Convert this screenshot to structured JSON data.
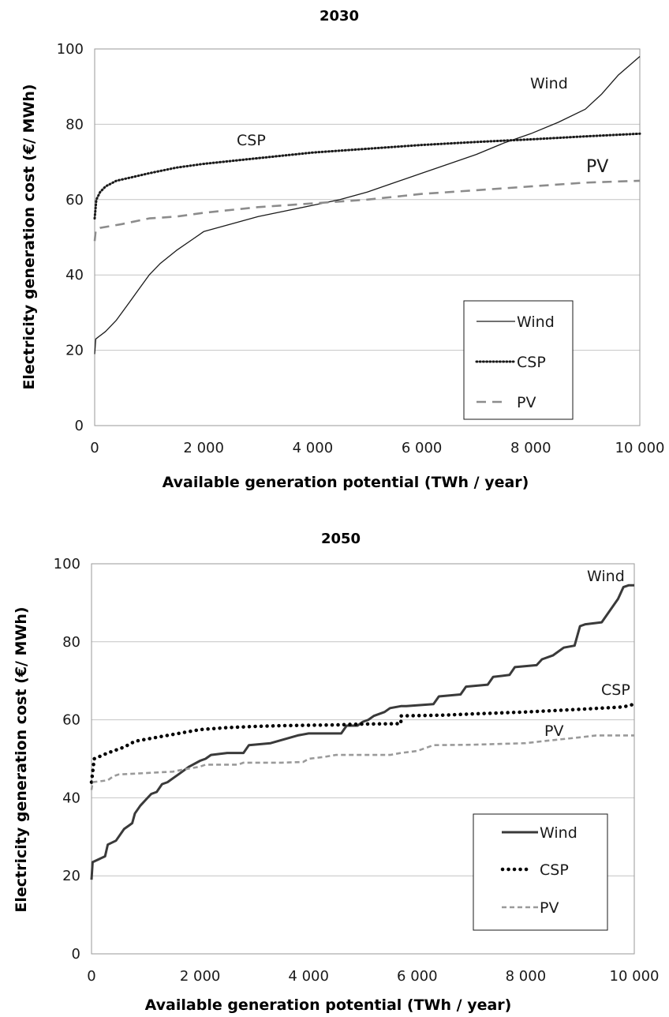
{
  "chart_data": [
    {
      "type": "line",
      "title": "2030",
      "xlabel": "Available generation potential  (TWh / year)",
      "ylabel": "Electricity generation cost  (€/ MWh)",
      "xlim": [
        0,
        10000
      ],
      "ylim": [
        0,
        100
      ],
      "xticks": [
        0,
        2000,
        4000,
        6000,
        8000,
        10000
      ],
      "xtick_labels": [
        "0",
        "2 000",
        "4 000",
        "6 000",
        "8 000",
        "10 000"
      ],
      "yticks": [
        0,
        20,
        40,
        60,
        80,
        100
      ],
      "ytick_labels": [
        "0",
        "20",
        "40",
        "60",
        "80",
        "100"
      ],
      "grid": "horizontal",
      "legend": [
        "Wind",
        "CSP",
        "PV"
      ],
      "legend_position": "bottom-right",
      "annotations": [
        {
          "text": "Wind",
          "series": "Wind"
        },
        {
          "text": "CSP",
          "series": "CSP"
        },
        {
          "text": "PV",
          "series": "PV"
        }
      ],
      "series": [
        {
          "name": "Wind",
          "style": "solid",
          "color": "#1a1a1a",
          "x": [
            0,
            20,
            200,
            400,
            600,
            800,
            1000,
            1200,
            1500,
            1800,
            2000,
            2500,
            3000,
            3500,
            4000,
            4500,
            5000,
            5500,
            6000,
            6500,
            7000,
            7500,
            8000,
            8500,
            9000,
            9300,
            9600,
            10000
          ],
          "y": [
            19,
            23,
            25,
            28,
            32,
            36,
            40,
            43,
            46.5,
            49.5,
            51.5,
            53.5,
            55.5,
            57,
            58.5,
            60,
            62,
            64.5,
            67,
            69.5,
            72,
            75,
            77.5,
            80.5,
            84,
            88,
            93,
            98
          ]
        },
        {
          "name": "CSP",
          "style": "dotted",
          "color": "#1a1a1a",
          "x": [
            0,
            30,
            100,
            200,
            400,
            700,
            1000,
            1500,
            2000,
            3000,
            4000,
            5000,
            6000,
            7000,
            8000,
            9000,
            10000
          ],
          "y": [
            55,
            60,
            62,
            63.5,
            65,
            66,
            67,
            68.5,
            69.5,
            71,
            72.5,
            73.5,
            74.5,
            75.3,
            76,
            76.8,
            77.5
          ]
        },
        {
          "name": "PV",
          "style": "dashed",
          "color": "#8c8c8c",
          "x": [
            0,
            20,
            100,
            500,
            1000,
            1500,
            2000,
            3000,
            4000,
            5000,
            6000,
            7000,
            8000,
            9000,
            10000
          ],
          "y": [
            49,
            52,
            52.5,
            53.5,
            55,
            55.5,
            56.5,
            58,
            59,
            60,
            61.5,
            62.5,
            63.5,
            64.5,
            65
          ]
        }
      ]
    },
    {
      "type": "line",
      "title": "2050",
      "xlabel": "Available generation potential  (TWh / year)",
      "ylabel": "Electricity generation cost  (€/ MWh)",
      "xlim": [
        0,
        10000
      ],
      "ylim": [
        0,
        100
      ],
      "xticks": [
        0,
        2000,
        4000,
        6000,
        8000,
        10000
      ],
      "xtick_labels": [
        "0",
        "2 000",
        "4 000",
        "6 000",
        "8 000",
        "10 000"
      ],
      "yticks": [
        0,
        20,
        40,
        60,
        80,
        100
      ],
      "ytick_labels": [
        "0",
        "20",
        "40",
        "60",
        "80",
        "100"
      ],
      "grid": "horizontal",
      "legend": [
        "Wind",
        "CSP",
        "PV"
      ],
      "legend_position": "bottom-right",
      "annotations": [
        {
          "text": "Wind",
          "series": "Wind"
        },
        {
          "text": "CSP",
          "series": "CSP"
        },
        {
          "text": "PV",
          "series": "PV"
        }
      ],
      "series": [
        {
          "name": "Wind",
          "style": "solid",
          "color": "#3a3a3a",
          "x": [
            0,
            20,
            250,
            300,
            450,
            500,
            600,
            700,
            750,
            800,
            850,
            900,
            1000,
            1100,
            1200,
            1300,
            1400,
            1500,
            1600,
            1700,
            1800,
            2000,
            2100,
            2200,
            2500,
            2800,
            2900,
            3300,
            3800,
            4000,
            4600,
            4700,
            4900,
            5000,
            5100,
            5200,
            5400,
            5500,
            5700,
            5800,
            6300,
            6400,
            6800,
            6900,
            7300,
            7400,
            7700,
            7800,
            8200,
            8300,
            8500,
            8700,
            8900,
            9000,
            9100,
            9400,
            9700,
            9800,
            9900,
            10000
          ],
          "y": [
            19,
            23.5,
            25,
            28,
            29,
            30,
            32,
            33,
            33.5,
            36,
            37,
            38,
            39.5,
            41,
            41.5,
            43.5,
            44,
            45,
            46,
            47,
            48,
            49.5,
            50,
            51,
            51.5,
            51.5,
            53.5,
            54,
            56,
            56.5,
            56.5,
            58.5,
            58.5,
            59.5,
            60,
            61,
            62,
            63,
            63.5,
            63.5,
            64,
            66,
            66.5,
            68.5,
            69,
            71,
            71.5,
            73.5,
            74,
            75.5,
            76.5,
            78.5,
            79,
            84,
            84.5,
            85,
            91,
            94,
            94.5,
            94.5
          ]
        },
        {
          "name": "CSP",
          "style": "dotted",
          "color": "#000000",
          "x": [
            0,
            50,
            300,
            600,
            800,
            1200,
            1600,
            2000,
            2500,
            3000,
            3500,
            4000,
            4600,
            4700,
            5000,
            5700,
            5701,
            6500,
            7000,
            8000,
            9000,
            9800,
            10000
          ],
          "y": [
            44,
            50,
            51.5,
            53,
            54.5,
            55.5,
            56.5,
            57.5,
            58,
            58.3,
            58.5,
            58.6,
            58.7,
            58.8,
            58.9,
            59,
            61,
            61.2,
            61.5,
            62,
            62.7,
            63.3,
            64
          ]
        },
        {
          "name": "PV",
          "style": "dashed",
          "color": "#9a9a9a",
          "x": [
            0,
            20,
            300,
            400,
            500,
            800,
            1200,
            1500,
            1600,
            1800,
            2000,
            2100,
            2700,
            2800,
            3500,
            3900,
            4000,
            4300,
            4500,
            5500,
            5700,
            6000,
            6200,
            6300,
            7000,
            7500,
            8000,
            8300,
            9000,
            9300,
            9800,
            10000
          ],
          "y": [
            42,
            44,
            44.5,
            45.5,
            46,
            46.2,
            46.5,
            46.7,
            47,
            47.5,
            48,
            48.5,
            48.5,
            49,
            49,
            49.2,
            50,
            50.5,
            51,
            51,
            51.5,
            52,
            53,
            53.5,
            53.6,
            53.8,
            54,
            54.5,
            55.5,
            56,
            56,
            56
          ]
        }
      ]
    }
  ]
}
